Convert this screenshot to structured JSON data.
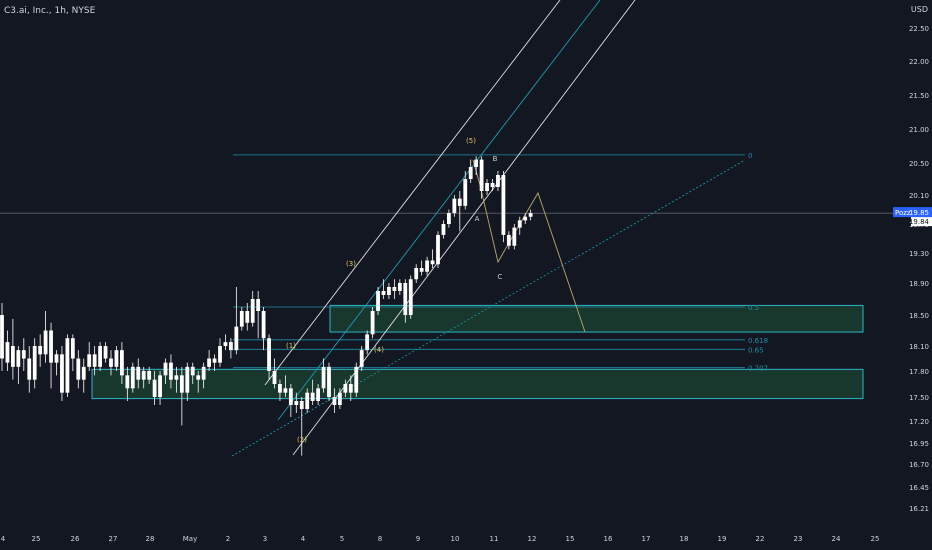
{
  "header": {
    "symbol_title": "C3.ai, Inc., 1h, NYSE",
    "currency": "USD"
  },
  "price_tag": {
    "label": "Pozz",
    "value": "19.85",
    "value2": "19.84"
  },
  "chart_data": {
    "type": "candlestick",
    "x_ticks": [
      "4",
      "25",
      "26",
      "27",
      "28",
      "May",
      "2",
      "3",
      "4",
      "5",
      "8",
      "9",
      "10",
      "11",
      "12",
      "15",
      "16",
      "17",
      "18",
      "19",
      "22",
      "23",
      "24",
      "25"
    ],
    "y_ticks": [
      "22.50",
      "22.00",
      "21.50",
      "21.00",
      "20.50",
      "20.10",
      "19.70",
      "19.30",
      "18.90",
      "18.50",
      "18.10",
      "17.80",
      "17.50",
      "17.20",
      "16.95",
      "16.70",
      "16.45",
      "16.21"
    ],
    "current_price": 19.85,
    "fib_levels": [
      {
        "label": "0",
        "price": 20.62
      },
      {
        "label": "0.5",
        "price": 18.6
      },
      {
        "label": "0.618",
        "price": 18.18
      },
      {
        "label": "0.65",
        "price": 18.06
      },
      {
        "label": "0.707",
        "price": 17.84
      }
    ],
    "zones": [
      {
        "top": 18.62,
        "bottom": 18.28
      },
      {
        "top": 17.82,
        "bottom": 17.48
      }
    ],
    "wave_labels": [
      "(1)",
      "(2)",
      "(3)",
      "(4)",
      "(5)",
      "A",
      "B",
      "C"
    ],
    "colors": {
      "background": "#131722",
      "candle": "#ffffff",
      "fib": "#1e8fa5",
      "zone_fill": "#1b4332",
      "zone_border": "#2fb5c8",
      "projection": "#b8a96a",
      "wave_label": "#e6c96a",
      "abc_label": "#cfcfcf",
      "channel": "#e0e0e0",
      "channel_mid": "#1e9bb0"
    }
  }
}
